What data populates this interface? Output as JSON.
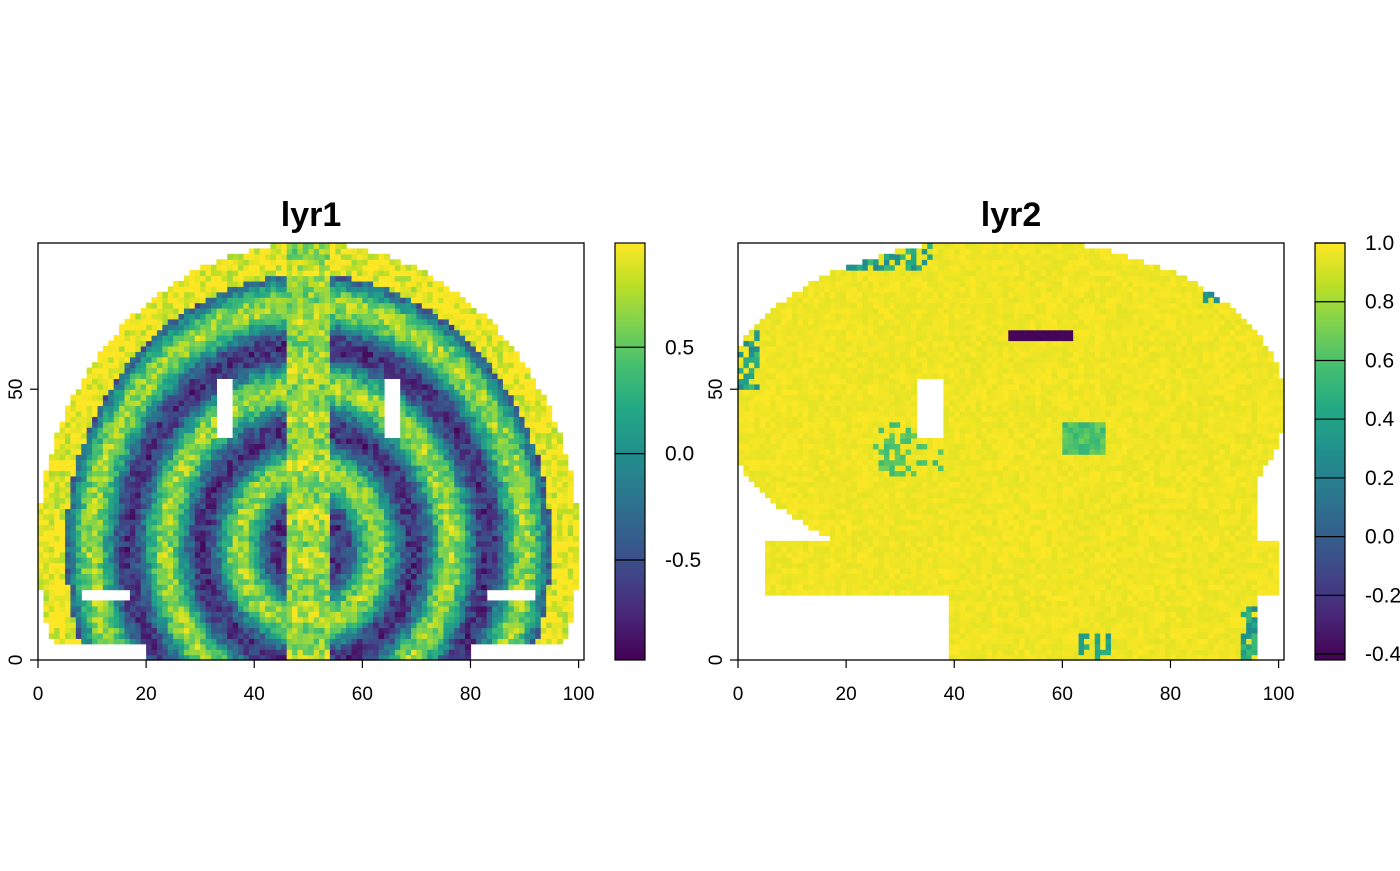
{
  "chart_data": [
    {
      "type": "heatmap",
      "title": "lyr1",
      "xlabel": "",
      "ylabel": "",
      "xlim": [
        0,
        101
      ],
      "ylim": [
        0,
        77
      ],
      "x_ticks": [
        "0",
        "20",
        "40",
        "60",
        "80",
        "100"
      ],
      "y_ticks": [
        "0",
        "50"
      ],
      "grid": false,
      "colorbar": {
        "position": "right",
        "range": [
          -0.97,
          0.99
        ],
        "ticks": [
          "-0.5",
          "0.0",
          "0.5"
        ],
        "colormap": "viridis"
      },
      "pattern": "symmetric concentric elliptical rings about x = 50 with dark (negative) bands at the sides and near the top center; bright values in outer ring and central column"
    },
    {
      "type": "heatmap",
      "title": "lyr2",
      "xlabel": "",
      "ylabel": "",
      "xlim": [
        0,
        101
      ],
      "ylim": [
        0,
        77
      ],
      "x_ticks": [
        "0",
        "20",
        "40",
        "60",
        "80",
        "100"
      ],
      "y_ticks": [
        "0",
        "50"
      ],
      "grid": false,
      "colorbar": {
        "position": "right",
        "range": [
          -0.42,
          1.0
        ],
        "ticks": [
          "-0.4",
          "-0.2",
          "0.0",
          "0.2",
          "0.4",
          "0.6",
          "0.8",
          "1.0"
        ],
        "colormap": "viridis"
      },
      "pattern": "mostly values near 1.0 forming an 'R' logo shape with a ring; lower values near edges and inside the letter bowl"
    }
  ],
  "colors": {
    "viridis_low": "#440154",
    "viridis_mid": "#21908c",
    "viridis_high": "#fde725",
    "frame": "#000000",
    "background": "#ffffff"
  }
}
